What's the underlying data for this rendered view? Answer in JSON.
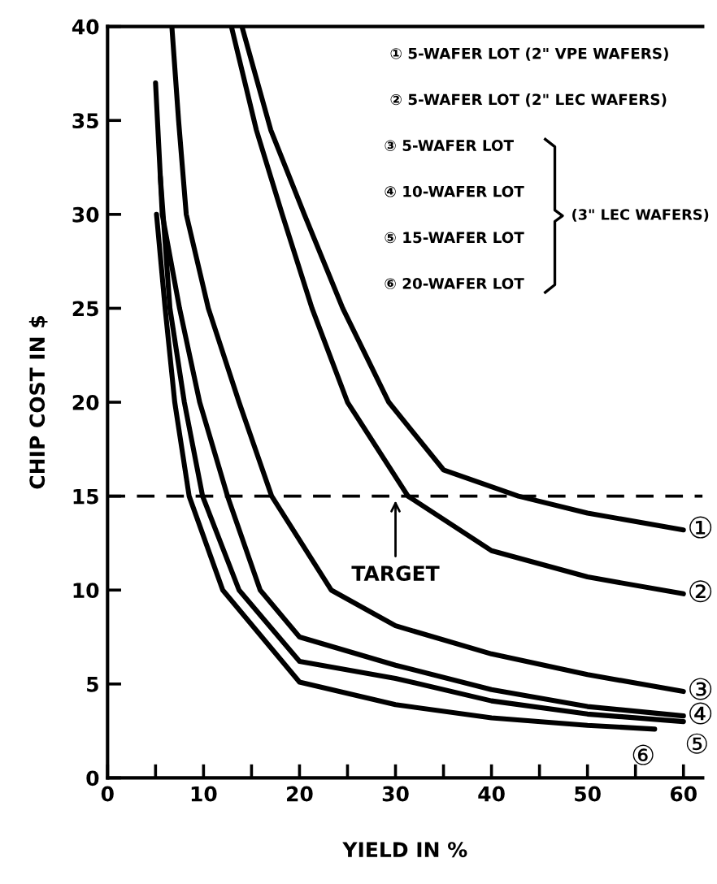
{
  "chart_data": {
    "type": "line",
    "xlabel": "YIELD IN %",
    "ylabel": "CHIP COST IN $",
    "xlim": [
      0,
      62
    ],
    "ylim": [
      0,
      40
    ],
    "xticks": [
      0,
      {
        "value": 5,
        "label": null
      },
      10,
      {
        "value": 15,
        "label": null
      },
      20,
      {
        "value": 25,
        "label": null
      },
      30,
      {
        "value": 35,
        "label": null
      },
      40,
      {
        "value": 45,
        "label": null
      },
      50,
      {
        "value": 55,
        "label": null
      },
      60
    ],
    "yticks": [
      0,
      5,
      10,
      15,
      20,
      25,
      30,
      35,
      40
    ],
    "grid": false,
    "marker": "none",
    "line_style": "solid",
    "series": [
      {
        "name": "①",
        "color": "#000000",
        "x": [
          14.0,
          17.0,
          20.5,
          24.5,
          29.3,
          35,
          42.8,
          50,
          60
        ],
        "values": [
          40,
          34.5,
          30,
          25,
          20,
          16.4,
          15,
          14.1,
          13.2
        ]
      },
      {
        "name": "②",
        "color": "#000000",
        "x": [
          12.9,
          15.5,
          18.2,
          21.3,
          25.0,
          31.3,
          40,
          50,
          60
        ],
        "values": [
          40,
          34.5,
          30,
          25,
          20,
          15,
          12.1,
          10.7,
          9.8
        ]
      },
      {
        "name": "③",
        "color": "#000000",
        "x": [
          6.7,
          7.4,
          8.2,
          10.5,
          13.7,
          17.1,
          23.3,
          30,
          40,
          50,
          60
        ],
        "values": [
          40,
          35,
          30,
          25,
          20,
          15,
          10,
          8.1,
          6.6,
          5.5,
          4.6
        ]
      },
      {
        "name": "④",
        "color": "#000000",
        "x": [
          5.0,
          5.7,
          7.5,
          9.6,
          12.5,
          15.9,
          20,
          30,
          40,
          50,
          60
        ],
        "values": [
          37,
          30,
          25,
          20,
          15,
          10,
          7.5,
          6.0,
          4.7,
          3.8,
          3.3
        ]
      },
      {
        "name": "⑤",
        "color": "#000000",
        "x": [
          5.5,
          6.5,
          8.0,
          9.9,
          13.7,
          20,
          30,
          40,
          50,
          60
        ],
        "values": [
          32,
          25,
          20,
          15,
          10,
          6.2,
          5.3,
          4.1,
          3.4,
          3.0
        ]
      },
      {
        "name": "⑥",
        "color": "#000000",
        "x": [
          5.1,
          6.0,
          7.0,
          8.5,
          12.0,
          20,
          30,
          40,
          50,
          57
        ],
        "values": [
          30,
          25,
          20,
          15,
          10,
          5.1,
          3.9,
          3.2,
          2.8,
          2.6
        ]
      }
    ],
    "ref_lines": [
      {
        "axis": "y",
        "value": 15,
        "label": "TARGET",
        "color": "#000000",
        "line_style": "dashed"
      }
    ],
    "annotations": [
      "① 5-WAFER LOT (2\" VPE WAFERS)",
      "② 5-WAFER LOT (2\" LEC WAFERS)",
      "③ 5-WAFER LOT",
      "④ 10-WAFER LOT",
      "⑤ 15-WAFER LOT",
      "⑥ 20-WAFER LOT",
      "(3\" LEC WAFERS)"
    ]
  }
}
